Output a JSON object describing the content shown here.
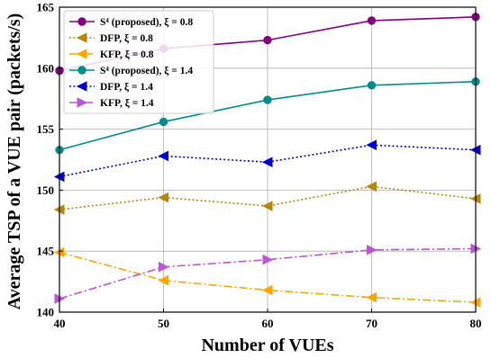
{
  "chart_data": {
    "type": "line",
    "x": [
      40,
      50,
      60,
      70,
      80
    ],
    "xlabel": "Number of VUEs",
    "ylabel": "Average TSP of a VUE pair (packets/s)",
    "xlim": [
      40,
      80
    ],
    "ylim": [
      140,
      165
    ],
    "xticks": [
      "40",
      "50",
      "60",
      "70",
      "80"
    ],
    "yticks": [
      "140",
      "145",
      "150",
      "155",
      "160",
      "165"
    ],
    "grid": true,
    "legend_position": "top-left",
    "series": [
      {
        "name": "S⁴ (proposed), ξ = 0.8",
        "values": [
          159.8,
          161.6,
          162.3,
          163.9,
          164.2
        ],
        "color": "#800080",
        "marker": "circle",
        "line_style": "solid"
      },
      {
        "name": "DFP, ξ = 0.8",
        "values": [
          148.4,
          149.4,
          148.7,
          150.3,
          149.3
        ],
        "color": "#b8860b",
        "marker": "triangle-left",
        "line_style": "dotted"
      },
      {
        "name": "KFP, ξ = 0.8",
        "values": [
          144.9,
          142.6,
          141.8,
          141.2,
          140.8
        ],
        "color": "#ffa500",
        "marker": "triangle-left",
        "line_style": "dashdot"
      },
      {
        "name": "S⁴ (proposed), ξ = 1.4",
        "values": [
          153.3,
          155.6,
          157.4,
          158.6,
          158.9
        ],
        "color": "#008b8b",
        "marker": "circle",
        "line_style": "solid"
      },
      {
        "name": "DFP, ξ = 1.4",
        "values": [
          151.1,
          152.8,
          152.3,
          153.7,
          153.3
        ],
        "color": "#0000cd",
        "marker": "triangle-left",
        "line_style": "dotted"
      },
      {
        "name": "KFP, ξ = 1.4",
        "values": [
          141.1,
          143.7,
          144.3,
          145.1,
          145.2
        ],
        "color": "#ba55d3",
        "marker": "triangle-right",
        "line_style": "dashdot"
      }
    ]
  }
}
